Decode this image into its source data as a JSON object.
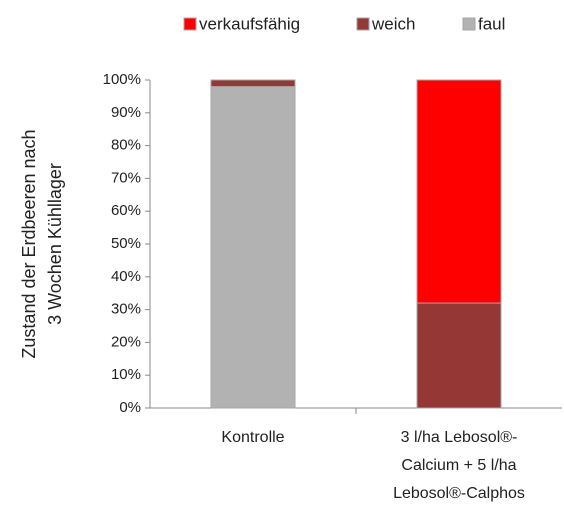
{
  "chart_data": {
    "type": "stacked_bar",
    "ylabel": [
      "Zustand der Erdbeeren nach",
      "3 Wochen Kühllager"
    ],
    "categories": [
      [
        "Kontrolle"
      ],
      [
        "3 l/ha Lebosol®-",
        "Calcium + 5 l/ha",
        "Lebosol®-Calphos"
      ]
    ],
    "series": [
      {
        "name": "faul",
        "color": "#b2b2b2",
        "values": [
          98,
          0
        ]
      },
      {
        "name": "weich",
        "color": "#953735",
        "values": [
          2,
          32
        ]
      },
      {
        "name": "verkaufsfähig",
        "color": "#ff0000",
        "values": [
          0,
          68
        ]
      }
    ],
    "legend_order": [
      2,
      1,
      0
    ],
    "legend": "top",
    "ylim": [
      0,
      100
    ],
    "yticks": [
      {
        "value": 0,
        "label": "0%"
      },
      {
        "value": 10,
        "label": "10%"
      },
      {
        "value": 20,
        "label": "20%"
      },
      {
        "value": 30,
        "label": "30%"
      },
      {
        "value": 40,
        "label": "40%"
      },
      {
        "value": 50,
        "label": "50%"
      },
      {
        "value": 60,
        "label": "60%"
      },
      {
        "value": 70,
        "label": "70%"
      },
      {
        "value": 80,
        "label": "80%"
      },
      {
        "value": 90,
        "label": "90%"
      },
      {
        "value": 100,
        "label": "100%"
      }
    ]
  }
}
